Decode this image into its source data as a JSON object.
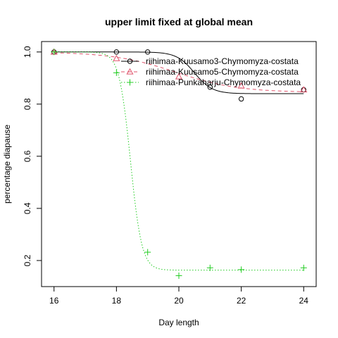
{
  "chart_data": {
    "type": "scatter",
    "title": "upper limit fixed at global mean",
    "xlabel": "Day length",
    "ylabel": "percentage diapause",
    "xlim": [
      15.6,
      24.4
    ],
    "ylim": [
      0.1,
      1.04
    ],
    "x_ticks": [
      16,
      18,
      20,
      22,
      24
    ],
    "y_ticks": [
      0.2,
      0.4,
      0.6,
      0.8,
      1.0
    ],
    "y_tick_labels": [
      "0.2",
      "0.4",
      "0.6",
      "0.8",
      "1.0"
    ],
    "grid": false,
    "legend_position": "top-right",
    "series": [
      {
        "name": "riihimaa-Kuusamo3-Chymomyza-costata",
        "color": "#000000",
        "marker": "circle",
        "line_style": "solid",
        "points": [
          [
            16,
            1.0
          ],
          [
            18,
            1.0
          ],
          [
            19,
            1.0
          ],
          [
            21,
            0.865
          ],
          [
            22,
            0.82
          ],
          [
            24,
            0.855
          ]
        ],
        "fit": {
          "upper": 1.0,
          "lower": 0.84,
          "midpoint": 20.5,
          "slope": 3.5
        }
      },
      {
        "name": "riihimaa-Kuusamo5-Chymomyza-costata",
        "color": "#DF536B",
        "marker": "triangle",
        "line_style": "dashed",
        "points": [
          [
            16,
            1.0
          ],
          [
            18,
            0.975
          ],
          [
            20,
            0.905
          ],
          [
            22,
            0.87
          ],
          [
            24,
            0.855
          ]
        ],
        "fit": {
          "upper": 1.0,
          "lower": 0.845,
          "midpoint": 19.9,
          "slope": 1.0
        }
      },
      {
        "name": "riihimaa-Punkaharju-Chymomyza-costata",
        "color": "#22CC22",
        "marker": "plus",
        "line_style": "dotted",
        "points": [
          [
            16,
            1.0
          ],
          [
            18,
            0.92
          ],
          [
            19,
            0.232
          ],
          [
            20,
            0.142
          ],
          [
            21,
            0.172
          ],
          [
            22,
            0.165
          ],
          [
            24,
            0.172
          ]
        ],
        "fit": {
          "upper": 1.0,
          "lower": 0.163,
          "midpoint": 18.45,
          "slope": 5.5
        }
      }
    ]
  }
}
